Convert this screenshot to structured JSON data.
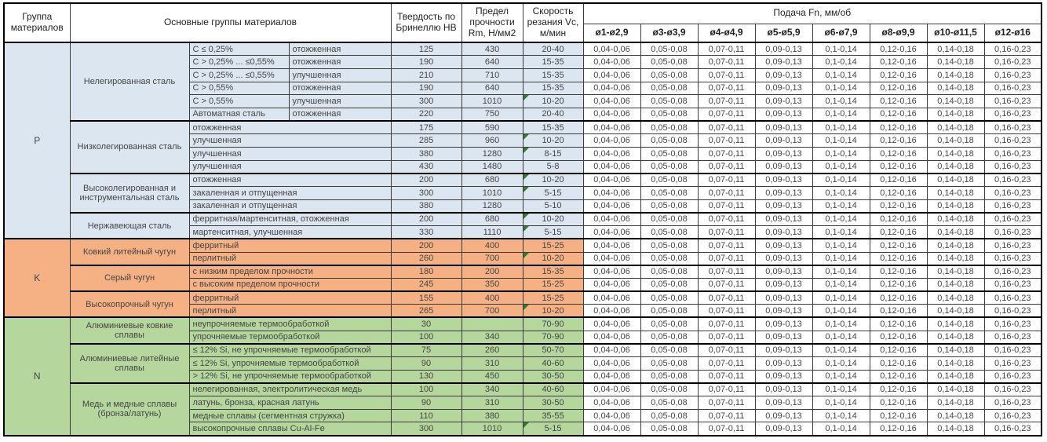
{
  "header": {
    "group": "Группа материалов",
    "materials": "Основные группы материалов",
    "hardness": "Твердость по Бринеллю HB",
    "strength": "Предел прочности Rm, Н/мм2",
    "speed": "Скорость резания Vc, м/мин",
    "feed": "Подача Fn, мм/об",
    "diameters": [
      "ø1-ø2,9",
      "ø3-ø3,9",
      "ø4-ø4,9",
      "ø5-ø5,9",
      "ø6-ø7,9",
      "ø8-ø9,9",
      "ø10-ø11,5",
      "ø12-ø16"
    ]
  },
  "feed_values": [
    "0,04-0,06",
    "0,05-0,08",
    "0,07-0,11",
    "0,09-0,13",
    "0,1-0,14",
    "0,12-0,16",
    "0,14-0,18",
    "0,16-0,23"
  ],
  "note_color": "#2E7D32",
  "groups": [
    {
      "code": "P",
      "color": "#DCE6F1",
      "subgroups": [
        {
          "name": "Нелегированная сталь",
          "rows": [
            {
              "composition": "C ≤ 0,25%",
              "state": "отожженная",
              "hb": "125",
              "rm": "430",
              "vc": "20-40",
              "note": false
            },
            {
              "composition": "C > 0,25% ... ≤0,55%",
              "state": "отожженная",
              "hb": "190",
              "rm": "640",
              "vc": "15-35",
              "note": false
            },
            {
              "composition": "C > 0,25% ... ≤0,55%",
              "state": "улучшенная",
              "hb": "210",
              "rm": "710",
              "vc": "15-35",
              "note": false
            },
            {
              "composition": "C > 0,55%",
              "state": "отожженная",
              "hb": "190",
              "rm": "640",
              "vc": "15-35",
              "note": false
            },
            {
              "composition": "C > 0,55%",
              "state": "улучшенная",
              "hb": "300",
              "rm": "1010",
              "vc": "10-20",
              "note": true
            },
            {
              "composition": "Автоматная сталь",
              "state": "отожженная",
              "hb": "220",
              "rm": "750",
              "vc": "20-40",
              "note": false
            }
          ]
        },
        {
          "name": "Низколегированная сталь",
          "rows": [
            {
              "desc": "отожженная",
              "hb": "175",
              "rm": "590",
              "vc": "15-35",
              "note": false
            },
            {
              "desc": "улучшенная",
              "hb": "285",
              "rm": "960",
              "vc": "10-20",
              "note": true
            },
            {
              "desc": "улучшенная",
              "hb": "380",
              "rm": "1280",
              "vc": "8-15",
              "note": true
            },
            {
              "desc": "улучшенная",
              "hb": "430",
              "rm": "1480",
              "vc": "5-8",
              "note": false
            }
          ]
        },
        {
          "name": "Высоколегированная и инструментальная сталь",
          "rows": [
            {
              "desc": "отожженная",
              "hb": "200",
              "rm": "680",
              "vc": "10-20",
              "note": true
            },
            {
              "desc": "закаленная и отпущенная",
              "hb": "300",
              "rm": "1010",
              "vc": "5-15",
              "note": true
            },
            {
              "desc": "закаленная и отпущенная",
              "hb": "380",
              "rm": "1280",
              "vc": "5-10",
              "note": false
            }
          ]
        },
        {
          "name": "Нержавеющая сталь",
          "rows": [
            {
              "desc": "ферритная/мартенситная, отожженная",
              "hb": "200",
              "rm": "680",
              "vc": "10-20",
              "note": true
            },
            {
              "desc": "мартенситная, улучшенная",
              "hb": "330",
              "rm": "1110",
              "vc": "5-15",
              "note": true
            }
          ]
        }
      ]
    },
    {
      "code": "K",
      "color": "#F5B183",
      "subgroups": [
        {
          "name": "Ковкий литейный чугун",
          "rows": [
            {
              "desc": "ферритный",
              "hb": "200",
              "rm": "400",
              "vc": "15-25",
              "note": false
            },
            {
              "desc": "перлитный",
              "hb": "260",
              "rm": "700",
              "vc": "10-20",
              "note": true
            }
          ]
        },
        {
          "name": "Серый чугун",
          "rows": [
            {
              "desc": "с низким пределом прочности",
              "hb": "180",
              "rm": "200",
              "vc": "15-35",
              "note": false
            },
            {
              "desc": "с высоким пределом прочности",
              "hb": "245",
              "rm": "350",
              "vc": "15-25",
              "note": false
            }
          ]
        },
        {
          "name": "Высокопрочный чугун",
          "rows": [
            {
              "desc": "ферритный",
              "hb": "155",
              "rm": "400",
              "vc": "15-25",
              "note": false
            },
            {
              "desc": "перлитный",
              "hb": "265",
              "rm": "700",
              "vc": "10-20",
              "note": true
            }
          ]
        }
      ]
    },
    {
      "code": "N",
      "color": "#B5D69C",
      "subgroups": [
        {
          "name": "Алюминиевые ковкие сплавы",
          "rows": [
            {
              "desc": "неупрочняемые термообработкой",
              "hb": "30",
              "rm": "",
              "vc": "70-90",
              "note": false
            },
            {
              "desc": "упрочняемые термообработкой",
              "hb": "100",
              "rm": "340",
              "vc": "70-90",
              "note": false
            }
          ]
        },
        {
          "name": "Алюминиевые литейные сплавы",
          "rows": [
            {
              "desc": "≤ 12% Si, не упрочняемые термообработкой",
              "hb": "75",
              "rm": "260",
              "vc": "50-70",
              "note": false
            },
            {
              "desc": "≤ 12% Si, упрочняемые термообработкой",
              "hb": "90",
              "rm": "310",
              "vc": "40-60",
              "note": false
            },
            {
              "desc": "> 12% Si, не упрочняемые термообработкой",
              "hb": "130",
              "rm": "450",
              "vc": "30-50",
              "note": false
            }
          ]
        },
        {
          "name": "Медь и медные сплавы (бронза/латунь)",
          "rows": [
            {
              "desc": "нелегированная, электролитическая медь",
              "hb": "100",
              "rm": "340",
              "vc": "40-60",
              "note": false
            },
            {
              "desc": "латунь, бронза, красная латунь",
              "hb": "90",
              "rm": "310",
              "vc": "30-50",
              "note": false
            },
            {
              "desc": "медные сплавы (сегментная стружка)",
              "hb": "110",
              "rm": "380",
              "vc": "35-55",
              "note": false
            },
            {
              "desc": "высокопрочные сплавы Cu-Al-Fe",
              "hb": "300",
              "rm": "1010",
              "vc": "5-15",
              "note": true
            }
          ]
        }
      ]
    }
  ]
}
